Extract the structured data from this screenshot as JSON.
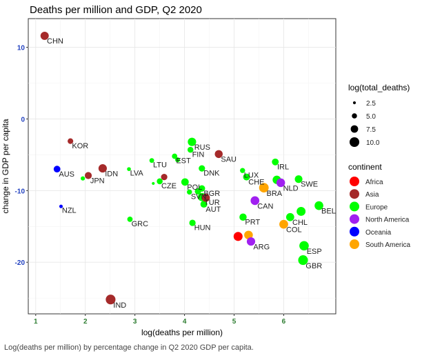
{
  "chart_data": {
    "type": "scatter",
    "title": "Deaths per million and GDP, Q2 2020",
    "xlabel": "log(deaths per million)",
    "ylabel": "change in GDP per capita",
    "xlim": [
      0.85,
      7.05
    ],
    "ylim": [
      -27.2,
      14.0
    ],
    "x_ticks": [
      1,
      2,
      3,
      4,
      5,
      6
    ],
    "y_ticks": [
      10,
      0,
      -10,
      -20
    ],
    "x_tick_labels": [
      "1",
      "2",
      "3",
      "4",
      "5",
      "6"
    ],
    "y_tick_labels": [
      "10",
      "0",
      "-10",
      "-20"
    ],
    "grid": true,
    "legend_position": "right",
    "size_legend": {
      "title": "log(total_deaths)",
      "entries": [
        {
          "label": "2.5",
          "value": 2.5
        },
        {
          "label": "5.0",
          "value": 5.0
        },
        {
          "label": "7.5",
          "value": 7.5
        },
        {
          "label": "10.0",
          "value": 10.0
        }
      ]
    },
    "color_legend": {
      "title": "continent",
      "entries": [
        {
          "label": "Africa",
          "color": "#ff0000"
        },
        {
          "label": "Asia",
          "color": "#a52a2a"
        },
        {
          "label": "Europe",
          "color": "#00ff00"
        },
        {
          "label": "North America",
          "color": "#a020f0"
        },
        {
          "label": "Oceania",
          "color": "#0000ff"
        },
        {
          "label": "South America",
          "color": "#ffa500"
        }
      ]
    },
    "points": [
      {
        "label": "CHN",
        "x": 1.18,
        "y": 11.6,
        "size": 8.4,
        "continent": "Asia"
      },
      {
        "label": "KOR",
        "x": 1.7,
        "y": -3.1,
        "size": 5.5,
        "continent": "Asia"
      },
      {
        "label": "AUS",
        "x": 1.43,
        "y": -7.0,
        "size": 6.7,
        "continent": "Oceania"
      },
      {
        "label": "JPN",
        "x": 2.06,
        "y": -7.9,
        "size": 7.0,
        "continent": "Asia"
      },
      {
        "label": "",
        "x": 1.95,
        "y": -8.3,
        "size": 4.0,
        "continent": "Europe"
      },
      {
        "label": "IDN",
        "x": 2.35,
        "y": -6.9,
        "size": 8.5,
        "continent": "Asia"
      },
      {
        "label": "NZL",
        "x": 1.51,
        "y": -12.2,
        "size": 3.2,
        "continent": "Oceania"
      },
      {
        "label": "IND",
        "x": 2.51,
        "y": -25.2,
        "size": 10.0,
        "continent": "Asia"
      },
      {
        "label": "LVA",
        "x": 2.88,
        "y": -7.0,
        "size": 3.6,
        "continent": "Europe"
      },
      {
        "label": "GRC",
        "x": 2.9,
        "y": -14.0,
        "size": 5.2,
        "continent": "Europe"
      },
      {
        "label": "LTU",
        "x": 3.34,
        "y": -5.8,
        "size": 4.5,
        "continent": "Europe"
      },
      {
        "label": "CZE",
        "x": 3.5,
        "y": -8.7,
        "size": 5.8,
        "continent": "Europe"
      },
      {
        "label": "",
        "x": 3.37,
        "y": -9.0,
        "size": 2.5,
        "continent": "Europe"
      },
      {
        "label": "",
        "x": 3.59,
        "y": -8.1,
        "size": 6.3,
        "continent": "Asia"
      },
      {
        "label": "EST",
        "x": 3.8,
        "y": -5.2,
        "size": 5.2,
        "continent": "Europe"
      },
      {
        "label": "",
        "x": 3.86,
        "y": -5.7,
        "size": 4.6,
        "continent": "Europe"
      },
      {
        "label": "POL",
        "x": 4.01,
        "y": -8.8,
        "size": 7.5,
        "continent": "Europe"
      },
      {
        "label": "SVN",
        "x": 4.1,
        "y": -10.2,
        "size": 5.0,
        "continent": "Europe"
      },
      {
        "label": "RUS",
        "x": 4.15,
        "y": -3.2,
        "size": 8.5,
        "continent": "Europe"
      },
      {
        "label": "FIN",
        "x": 4.12,
        "y": -4.3,
        "size": 5.8,
        "continent": "Europe"
      },
      {
        "label": "HUN",
        "x": 4.16,
        "y": -14.5,
        "size": 6.3,
        "continent": "Europe"
      },
      {
        "label": "DNK",
        "x": 4.35,
        "y": -6.9,
        "size": 6.3,
        "continent": "Europe"
      },
      {
        "label": "BGR",
        "x": 4.35,
        "y": -9.7,
        "size": 6.4,
        "continent": "Europe"
      },
      {
        "label": "",
        "x": 4.27,
        "y": -10.1,
        "size": 6.2,
        "continent": "Europe"
      },
      {
        "label": "TUR",
        "x": 4.35,
        "y": -10.9,
        "size": 8.3,
        "continent": "Europe"
      },
      {
        "label": "AUT",
        "x": 4.39,
        "y": -11.9,
        "size": 6.9,
        "continent": "Europe"
      },
      {
        "label": "",
        "x": 4.43,
        "y": -11.0,
        "size": 8.2,
        "continent": "Asia"
      },
      {
        "label": "SAU",
        "x": 4.69,
        "y": -4.9,
        "size": 8.0,
        "continent": "Asia"
      },
      {
        "label": "LUX",
        "x": 5.17,
        "y": -7.2,
        "size": 4.9,
        "continent": "Europe"
      },
      {
        "label": "CHE",
        "x": 5.25,
        "y": -8.1,
        "size": 6.9,
        "continent": "Europe"
      },
      {
        "label": "PRT",
        "x": 5.18,
        "y": -13.7,
        "size": 7.3,
        "continent": "Europe"
      },
      {
        "label": "",
        "x": 5.08,
        "y": -16.4,
        "size": 9.2,
        "continent": "Africa"
      },
      {
        "label": "",
        "x": 5.29,
        "y": -16.2,
        "size": 8.8,
        "continent": "South America"
      },
      {
        "label": "ARG",
        "x": 5.34,
        "y": -17.1,
        "size": 8.5,
        "continent": "North America"
      },
      {
        "label": "CAN",
        "x": 5.42,
        "y": -11.4,
        "size": 8.9,
        "continent": "North America"
      },
      {
        "label": "BRA",
        "x": 5.6,
        "y": -9.6,
        "size": 9.8,
        "continent": "South America"
      },
      {
        "label": "IRL",
        "x": 5.83,
        "y": -6.0,
        "size": 6.8,
        "continent": "Europe"
      },
      {
        "label": "",
        "x": 5.86,
        "y": -8.5,
        "size": 8.5,
        "continent": "Europe"
      },
      {
        "label": "NLD",
        "x": 5.94,
        "y": -8.9,
        "size": 8.8,
        "continent": "North America"
      },
      {
        "label": "COL",
        "x": 6.0,
        "y": -14.7,
        "size": 9.0,
        "continent": "South America"
      },
      {
        "label": "CHL",
        "x": 6.13,
        "y": -13.7,
        "size": 8.2,
        "continent": "Europe"
      },
      {
        "label": "SWE",
        "x": 6.3,
        "y": -8.4,
        "size": 7.7,
        "continent": "Europe"
      },
      {
        "label": "",
        "x": 6.35,
        "y": -12.9,
        "size": 9.1,
        "continent": "Europe"
      },
      {
        "label": "ESP",
        "x": 6.41,
        "y": -17.7,
        "size": 9.7,
        "continent": "Europe"
      },
      {
        "label": "GBR",
        "x": 6.39,
        "y": -19.7,
        "size": 10.0,
        "continent": "Europe"
      },
      {
        "label": "BEL",
        "x": 6.71,
        "y": -12.1,
        "size": 8.9,
        "continent": "Europe"
      }
    ]
  },
  "caption": "Log(deaths per million) by percentage change in Q2 2020 GDP per capita."
}
